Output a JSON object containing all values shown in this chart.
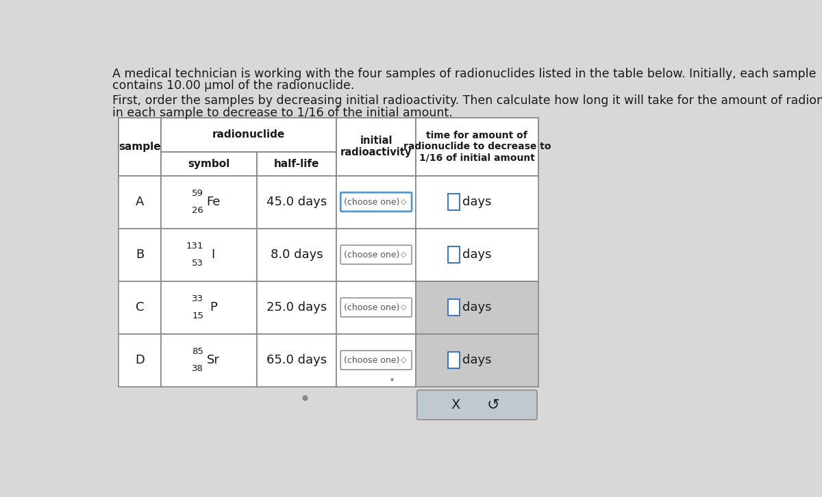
{
  "page_bg": "#d8d8d8",
  "title_text1": "A medical technician is working with the four samples of radionuclides listed in the table below. Initially, each sample",
  "title_text2": "contains 10.00 μmol of the radionuclide.",
  "subtitle_text1": "First, order the samples by decreasing initial radioactivity. Then calculate how long it will take for the amount of radionuclide",
  "subtitle_text2": "in each sample to decrease to 1/16 of the initial amount.",
  "rows": [
    {
      "sample": "A",
      "mass_num": "59",
      "symbol": "Fe",
      "atomic_num": "26",
      "half_life": "45.0 days"
    },
    {
      "sample": "B",
      "mass_num": "131",
      "symbol": "I",
      "atomic_num": "53",
      "half_life": "8.0 days"
    },
    {
      "sample": "C",
      "mass_num": "33",
      "symbol": "P",
      "atomic_num": "15",
      "half_life": "25.0 days"
    },
    {
      "sample": "D",
      "mass_num": "85",
      "symbol": "Sr",
      "atomic_num": "38",
      "half_life": "65.0 days"
    }
  ],
  "white": "#ffffff",
  "gray_cell": "#c8c8c8",
  "border_color": "#888888",
  "text_color": "#1a1a1a",
  "choose_one_border_active": "#5599cc",
  "choose_one_border_normal": "#999999",
  "days_box_border": "#4477bb",
  "bottom_box_bg": "#c0c8d0",
  "bottom_box_border": "#999999"
}
